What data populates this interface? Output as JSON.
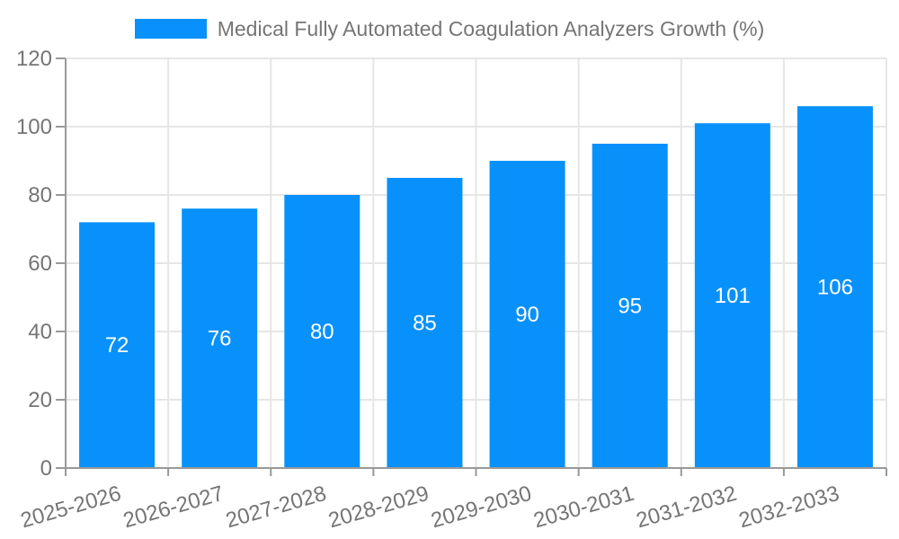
{
  "chart_data": {
    "type": "bar",
    "title": "Medical Fully Automated Coagulation Analyzers Growth (%)",
    "series_name": "Medical Fully Automated Coagulation Analyzers Growth (%)",
    "categories": [
      "2025-2026",
      "2026-2027",
      "2027-2028",
      "2028-2029",
      "2029-2030",
      "2030-2031",
      "2031-2032",
      "2032-2033"
    ],
    "values": [
      72,
      76,
      80,
      85,
      90,
      95,
      101,
      106
    ],
    "xlabel": "",
    "ylabel": "",
    "ylim": [
      0,
      120
    ],
    "yticks": [
      0,
      20,
      40,
      60,
      80,
      100,
      120
    ],
    "grid": true,
    "legend_position": "top",
    "value_labels": "inside-center",
    "colors": {
      "bar": "#0991FB",
      "value_label": "#FFFFFF",
      "axis_line": "#999999",
      "grid_line": "#E6E6E6",
      "tick_label": "#757575",
      "legend_text": "#757575",
      "background": "#FFFFFF"
    }
  }
}
